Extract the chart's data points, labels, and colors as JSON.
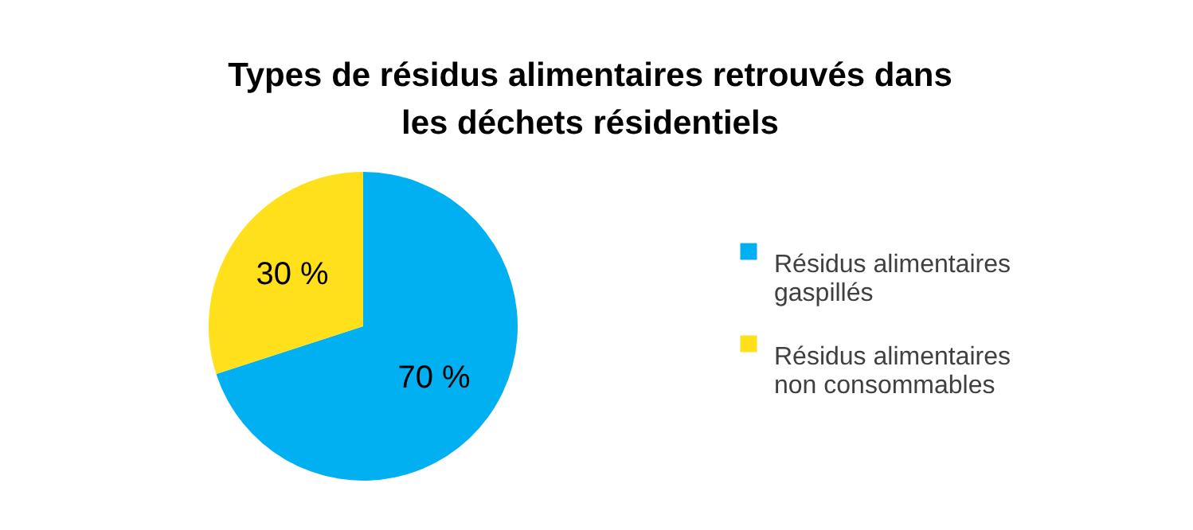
{
  "chart_data": {
    "type": "pie",
    "title": "Types de résidus alimentaires retrouvés dans les déchets résidentiels",
    "categories": [
      "Résidus alimentaires gaspillés",
      "Résidus alimentaires non consommables"
    ],
    "values": [
      70,
      30
    ],
    "colors": [
      "#00b0f0",
      "#ffe01a"
    ],
    "value_labels": [
      "70 %",
      "30 %"
    ],
    "legend": "right"
  }
}
